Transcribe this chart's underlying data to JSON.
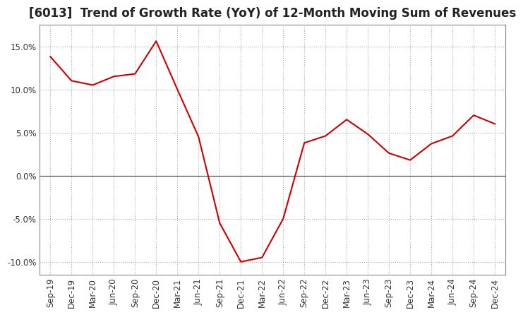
{
  "title": "[6013]  Trend of Growth Rate (YoY) of 12-Month Moving Sum of Revenues",
  "x_labels": [
    "Sep-19",
    "Dec-19",
    "Mar-20",
    "Jun-20",
    "Sep-20",
    "Dec-20",
    "Mar-21",
    "Jun-21",
    "Sep-21",
    "Dec-21",
    "Mar-22",
    "Jun-22",
    "Sep-22",
    "Dec-22",
    "Mar-23",
    "Jun-23",
    "Sep-23",
    "Dec-23",
    "Mar-24",
    "Jun-24",
    "Sep-24",
    "Dec-24"
  ],
  "y_values": [
    0.138,
    0.11,
    0.105,
    0.115,
    0.118,
    0.156,
    0.1,
    0.045,
    -0.055,
    -0.1,
    -0.095,
    -0.05,
    0.038,
    0.046,
    0.065,
    0.048,
    0.026,
    0.018,
    0.037,
    0.046,
    0.07,
    0.06
  ],
  "line_color": "#cc0000",
  "background_color": "#ffffff",
  "grid_color": "#aaaaaa",
  "zero_line_color": "#555555",
  "title_color": "#222222",
  "ylim": [
    -0.115,
    0.175
  ],
  "yticks": [
    -0.1,
    -0.05,
    0.0,
    0.05,
    0.1,
    0.15
  ],
  "title_fontsize": 12,
  "tick_fontsize": 8.5
}
